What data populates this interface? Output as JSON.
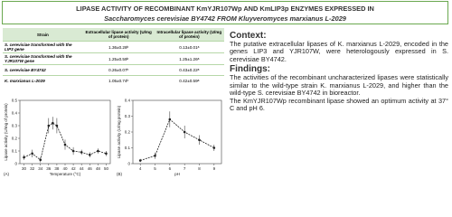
{
  "header": {
    "title": [
      "LIPASE ACTIVITY OF RECOMBINANT KmYJR107Wp AND KmLIP3p ENZYMES EXPRESSED IN",
      "Saccharomyces cerevisiae BY4742 FROM Kluyveromyces marxianus L-2029"
    ]
  },
  "table": {
    "columns": [
      "Strain",
      "Extracellular lipase activity (U/mg of protein)",
      "Intracellular lipase activity (U/mg of protein)"
    ],
    "rows": [
      [
        "S. cerevisiae transformed with the LIP3 gene",
        "1.36±0.28ᵇ",
        "0.13±0.01ᵃ"
      ],
      [
        "S. cerevisiae transformed with the YJR107W gene",
        "1.25±0.59ᵇ",
        "1.25±1.26ᵃ"
      ],
      [
        "S. cerevisiae BY4742",
        "0.26±0.07ᵇ",
        "0.43±0.22ᵃ"
      ],
      [
        "K. marxianus L-2029",
        "1.05±0.74ᵇ",
        "0.42±0.59ᵃ"
      ]
    ]
  },
  "chart_data": [
    {
      "type": "line",
      "panel": "(A)",
      "x_label": "Temperature (°C)",
      "y_label": "Lipase activity (U/mg of protein)",
      "color": "#222222",
      "x": [
        30,
        32,
        34,
        36,
        37,
        38,
        40,
        42,
        44,
        46,
        48,
        50
      ],
      "values": [
        0.05,
        0.08,
        0.03,
        0.3,
        0.32,
        0.3,
        0.15,
        0.1,
        0.09,
        0.07,
        0.1,
        0.08
      ],
      "errors": [
        0.02,
        0.03,
        0.02,
        0.06,
        0.05,
        0.06,
        0.04,
        0.03,
        0.02,
        0.02,
        0.02,
        0.02
      ],
      "xlim": [
        29,
        51
      ],
      "ylim": [
        0,
        0.5
      ],
      "xticks": [
        30,
        32,
        34,
        36,
        38,
        40,
        42,
        44,
        46,
        48,
        50
      ],
      "yticks": [
        0,
        0.1,
        0.2,
        0.3,
        0.4,
        0.5
      ]
    },
    {
      "type": "line",
      "panel": "(B)",
      "x_label": "pH",
      "y_label": "Lipase activity (U/mg protein)",
      "color": "#222222",
      "x": [
        4,
        5,
        6,
        7,
        8,
        9
      ],
      "values": [
        0.02,
        0.05,
        0.28,
        0.2,
        0.15,
        0.1
      ],
      "errors": [
        0.01,
        0.02,
        0.05,
        0.04,
        0.03,
        0.02
      ],
      "xlim": [
        3.5,
        9.5
      ],
      "ylim": [
        0,
        0.4
      ],
      "xticks": [
        4,
        5,
        6,
        7,
        8,
        9
      ],
      "yticks": [
        0,
        0.1,
        0.2,
        0.3,
        0.4
      ]
    }
  ],
  "context": {
    "heading": "Context:",
    "text": "The putative extracellular lipases of K. marxianus L-2029, encoded in the genes LIP3 and YJR107W, were heterologously expressed in S. cerevisiae BY4742."
  },
  "findings": {
    "heading": "Findings:",
    "paragraphs": [
      "The activities of the recombinant uncharacterized lipases were statistically similar to the wild-type strain K. marxianus L-2029, and higher than the wild-type S. cerevisiae BY4742 in bioreactor.",
      "The KmYJR107Wp recombinant lipase showed an optimum activity at 37° C and pH 6."
    ]
  }
}
